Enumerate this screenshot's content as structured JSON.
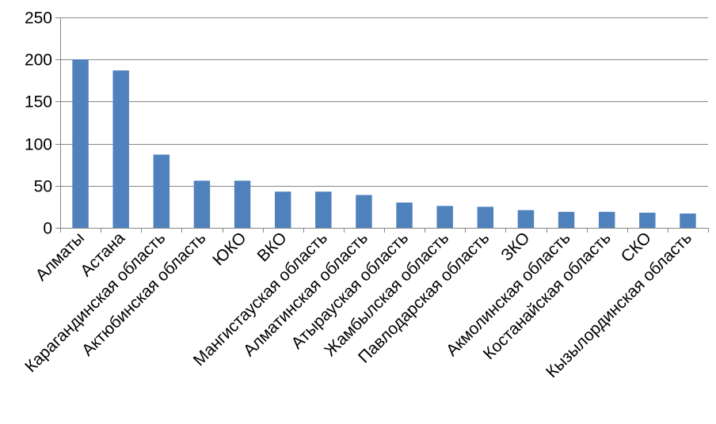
{
  "chart_data": {
    "type": "bar",
    "categories": [
      "Алматы",
      "Астана",
      "Карагандинская область",
      "Актюбинская область",
      "ЮКО",
      "ВКО",
      "Мангистауская область",
      "Алматинская область",
      "Атырауская область",
      "Жамбылская область",
      "Павлодарская область",
      "ЗКО",
      "Акмолинская область",
      "Костанайская область",
      "СКО",
      "Кызылординская область"
    ],
    "values": [
      200,
      187,
      87,
      56,
      56,
      43,
      43,
      39,
      30,
      26,
      25,
      21,
      19,
      19,
      18,
      17
    ],
    "ylim": [
      0,
      250
    ],
    "yticks": [
      0,
      50,
      100,
      150,
      200,
      250
    ],
    "grid": true,
    "legend": "none",
    "colors": {
      "bar": "#4F81BD",
      "grid": "#868686",
      "axis": "#868686"
    }
  }
}
